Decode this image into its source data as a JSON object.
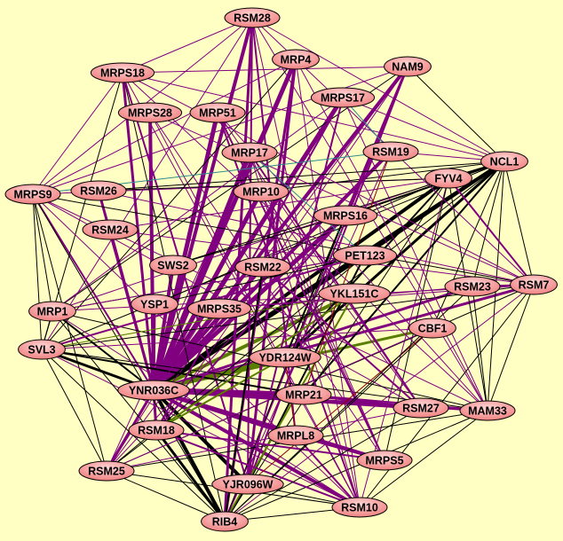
{
  "colors": {
    "background": "#ffffc4",
    "purple": "#800080",
    "black": "#000000",
    "olive": "#5a7f00",
    "darkred": "#8b0000",
    "teal": "#2e8b8b",
    "node_fill": "#ff9a9a",
    "node_border": "#000000"
  },
  "nodes": [
    {
      "id": "RSM28",
      "label": "RSM28"
    },
    {
      "id": "MRP4",
      "label": "MRP4"
    },
    {
      "id": "NAM9",
      "label": "NAM9"
    },
    {
      "id": "MRPS18",
      "label": "MRPS18"
    },
    {
      "id": "MRPS17",
      "label": "MRPS17"
    },
    {
      "id": "MRPS28",
      "label": "MRPS28"
    },
    {
      "id": "MRP51",
      "label": "MRP51"
    },
    {
      "id": "RSM19",
      "label": "RSM19"
    },
    {
      "id": "NCL1",
      "label": "NCL1"
    },
    {
      "id": "MRP17",
      "label": "MRP17"
    },
    {
      "id": "FYV4",
      "label": "FYV4"
    },
    {
      "id": "MRPS9",
      "label": "MRPS9"
    },
    {
      "id": "RSM26",
      "label": "RSM26"
    },
    {
      "id": "MRP10",
      "label": "MRP10"
    },
    {
      "id": "MRPS16",
      "label": "MRPS16"
    },
    {
      "id": "RSM24",
      "label": "RSM24"
    },
    {
      "id": "PET123",
      "label": "PET123"
    },
    {
      "id": "SWS2",
      "label": "SWS2"
    },
    {
      "id": "RSM22",
      "label": "RSM22"
    },
    {
      "id": "RSM23",
      "label": "RSM23"
    },
    {
      "id": "RSM7",
      "label": "RSM7"
    },
    {
      "id": "YKL151C",
      "label": "YKL151C"
    },
    {
      "id": "YSP1",
      "label": "YSP1"
    },
    {
      "id": "MRPS35",
      "label": "MRPS35"
    },
    {
      "id": "MRP1",
      "label": "MRP1"
    },
    {
      "id": "CBF1",
      "label": "CBF1"
    },
    {
      "id": "SVL3",
      "label": "SVL3"
    },
    {
      "id": "YDR124W",
      "label": "YDR124W"
    },
    {
      "id": "YNR036C",
      "label": "YNR036C"
    },
    {
      "id": "MRP21",
      "label": "MRP21"
    },
    {
      "id": "RSM27",
      "label": "RSM27"
    },
    {
      "id": "MAM33",
      "label": "MAM33"
    },
    {
      "id": "RSM18",
      "label": "RSM18"
    },
    {
      "id": "MRPL8",
      "label": "MRPL8"
    },
    {
      "id": "MRPS5",
      "label": "MRPS5"
    },
    {
      "id": "RSM25",
      "label": "RSM25"
    },
    {
      "id": "YJR096W",
      "label": "YJR096W"
    },
    {
      "id": "RSM10",
      "label": "RSM10"
    },
    {
      "id": "RIB4",
      "label": "RIB4"
    }
  ],
  "edges": [
    "YNR036C|RSM28|purple|4",
    "YNR036C|MRP4|purple|5",
    "YNR036C|NAM9|purple|4",
    "YNR036C|MRPS18|purple|3",
    "YNR036C|MRPS17|purple|5",
    "YNR036C|MRPS28|purple|4",
    "YNR036C|MRP51|purple|5",
    "YNR036C|RSM19|purple|4",
    "YNR036C|NCL1|black|4",
    "YNR036C|MRP17|purple|5",
    "YNR036C|FYV4|black|4",
    "YNR036C|MRPS9|purple|2",
    "YNR036C|RSM26|purple|3",
    "YNR036C|MRP10|purple|5",
    "YNR036C|MRPS16|purple|5",
    "YNR036C|RSM24|purple|3",
    "YNR036C|PET123|black|4",
    "YNR036C|SWS2|purple|4",
    "YNR036C|RSM22|purple|4",
    "YNR036C|RSM23|purple|3",
    "YNR036C|RSM7|purple|3",
    "YNR036C|YKL151C|olive|4",
    "YNR036C|YSP1|purple|3",
    "YNR036C|MRPS35|purple|4",
    "YNR036C|MRP1|black|2",
    "YNR036C|CBF1|olive|3",
    "YNR036C|SVL3|black|3",
    "YNR036C|YDR124W|olive|4",
    "YNR036C|MRP21|purple|6",
    "YNR036C|RSM27|purple|4",
    "YNR036C|MAM33|purple|3",
    "YNR036C|RSM18|purple|3",
    "YNR036C|MRPL8|purple|5",
    "YNR036C|MRPS5|purple|4",
    "YNR036C|RSM25|purple|3",
    "YNR036C|YJR096W|black|4",
    "YNR036C|RSM10|purple|4",
    "YNR036C|RIB4|black|4",
    "NCL1|PET123|black|3",
    "NCL1|MRPS16|black|2",
    "NCL1|YDR124W|black|3",
    "NCL1|FYV4|black|2",
    "NCL1|RSM19|purple|1",
    "NCL1|RSM7|black|1",
    "NCL1|MAM33|black|1",
    "NCL1|NAM9|black|1",
    "NCL1|MRPS17|purple|1",
    "NCL1|RSM23|black|1",
    "NCL1|CBF1|black|1",
    "NCL1|MRP21|black|2",
    "NCL1|SVL3|black|1",
    "NCL1|RSM28|purple|1",
    "NCL1|MRP10|black|1",
    "FYV4|MRPS9|purple|1",
    "FYV4|RSM26|black|1",
    "FYV4|YSP1|black|1",
    "FYV4|MRP1|purple|1",
    "FYV4|RSM7|purple|2",
    "FYV4|MAM33|black|1",
    "FYV4|RSM10|purple|1",
    "FYV4|RIB4|black|1",
    "FYV4|MRPS5|black|1",
    "FYV4|YDR124W|black|2",
    "NAM9|MRPS18|purple|1",
    "NAM9|RSM18|purple|1",
    "NAM9|RIB4|purple|2",
    "NAM9|MRPS9|purple|1",
    "NAM9|MRP1|black|1",
    "NAM9|YJR096W|purple|2",
    "NAM9|RSM25|purple|1",
    "NAM9|MRPS16|purple|3",
    "RSM28|MRPS18|purple|1",
    "RSM28|MRPS9|purple|1",
    "RSM28|RSM10|purple|1",
    "RSM28|RIB4|purple|3",
    "RSM28|MAM33|purple|1",
    "RSM28|YJR096W|purple|2",
    "RSM28|RSM7|purple|1",
    "RSM28|SVL3|purple|1",
    "RSM28|MRPL8|purple|2",
    "MRP4|RIB4|purple|3",
    "MRP4|RSM25|purple|1",
    "MRP4|MRPS9|purple|1",
    "MRP4|RSM10|purple|1",
    "MRP4|MAM33|purple|1",
    "MRP4|YJR096W|purple|3",
    "MRP4|SVL3|black|1",
    "MRPS18|RSM10|purple|1",
    "MRPS18|MAM33|purple|1",
    "MRPS18|RIB4|black|1",
    "MRPS18|RSM7|purple|1",
    "MRPS18|YJR096W|purple|2",
    "MRPS18|NCL1|purple|1",
    "MRPS18|MRPS9|purple|1",
    "MRPS18|SVL3|black|1",
    "MRPS9|RSM7|black|1",
    "MRPS9|MAM33|purple|1",
    "MRPS9|RIB4|black|1",
    "MRPS9|RSM25|black|1",
    "MRPS9|SVL3|black|1",
    "MRPS9|MRP1|black|1",
    "MRPS9|RSM10|purple|1",
    "MRPS9|RSM27|purple|1",
    "SVL3|RSM7|black|1",
    "SVL3|MAM33|black|1",
    "SVL3|RIB4|black|1",
    "SVL3|RSM25|black|1",
    "SVL3|RSM10|purple|1",
    "SVL3|MRP21|black|2",
    "SVL3|CBF1|purple|1",
    "SVL3|MRP1|black|1",
    "MRP1|RSM7|purple|1",
    "MRP1|MAM33|black|1",
    "MRP1|RSM10|purple|1",
    "MRP1|RIB4|black|1",
    "MRP1|PET123|black|1",
    "RSM25|RSM7|black|1",
    "RSM25|MAM33|black|1",
    "RSM25|RIB4|black|1",
    "RSM25|RSM10|black|1",
    "RSM25|NCL1|black|1",
    "RIB4|RSM10|black|1",
    "RIB4|MAM33|black|1",
    "RIB4|RSM7|purple|1",
    "RIB4|YJR096W|black|3",
    "RIB4|RSM18|black|3",
    "RSM10|MAM33|black|1",
    "RSM10|RSM7|black|1",
    "RSM10|MRP17|purple|1",
    "RSM10|MRPS28|purple|1",
    "RSM10|MRP51|purple|2",
    "MAM33|RSM7|black|1",
    "MAM33|RSM23|black|1",
    "MAM33|MRPS17|purple|1",
    "MAM33|MRP51|purple|1",
    "RSM7|RSM23|purple|2",
    "RSM7|MRPS28|purple|1",
    "RSM7|RSM26|purple|1",
    "RSM7|RSM24|purple|1",
    "RSM7|MRPS35|purple|1",
    "MRPS16|YDR124W|black|2",
    "MRPS16|RSM18|purple|2",
    "MRPS16|RIB4|black|1",
    "MRPS16|RSM25|purple|1",
    "PET123|SVL3|purple|2",
    "PET123|RSM25|black|1",
    "PET123|MRP1|purple|1",
    "PET123|YJR096W|black|2",
    "YKL151C|RIB4|olive|2",
    "YKL151C|RSM18|olive|2",
    "YKL151C|SVL3|olive|1",
    "YDR124W|RSM18|olive|2",
    "MRPS17|RSM18|purple|2",
    "MRPS17|YJR096W|purple|2",
    "MRPS17|RSM25|purple|1",
    "MRPS17|MRP1|purple|1",
    "MRP51|RSM27|purple|1",
    "MRP51|MRPS5|purple|2",
    "MRP17|MRPS5|purple|1",
    "MRP17|RSM27|purple|2",
    "MRPS28|MRPS5|purple|1",
    "MRP10|RSM27|purple|1",
    "MRP10|MRPS5|purple|1",
    "RSM22|RSM27|purple|2",
    "RSM22|RIB4|black|2",
    "SWS2|MRPS16|black|1",
    "SWS2|NCL1|black|1",
    "RSM26|NCL1|black|1",
    "RSM24|FYV4|purple|1",
    "YSP1|PET123|black|1",
    "MRPS35|RSM23|purple|1",
    "MRP21|RSM27|purple|3",
    "MRP21|MAM33|purple|2",
    "MRPL8|MRPS5|purple|3",
    "MRPL8|RSM10|purple|2",
    "RSM18|MRPS5|purple|2",
    "RSM18|RSM10|purple|2",
    "YJR096W|RSM10|black|1",
    "YJR096W|CBF1|darkred|1",
    "MRPL8|YDR124W|darkred|1",
    "MRP21|RSM19|darkred|1",
    "CBF1|RSM25|purple|1",
    "CBF1|RIB4|black|1",
    "RSM27|RIB4|black|1",
    "RSM27|RSM25|purple|1",
    "RSM23|RIB4|black|1",
    "RSM19|MRPS9|teal|1",
    "RSM19|RIB4|purple|1",
    "MRPS17|RSM19|teal|1",
    "MRP17|PET123|teal|1"
  ]
}
